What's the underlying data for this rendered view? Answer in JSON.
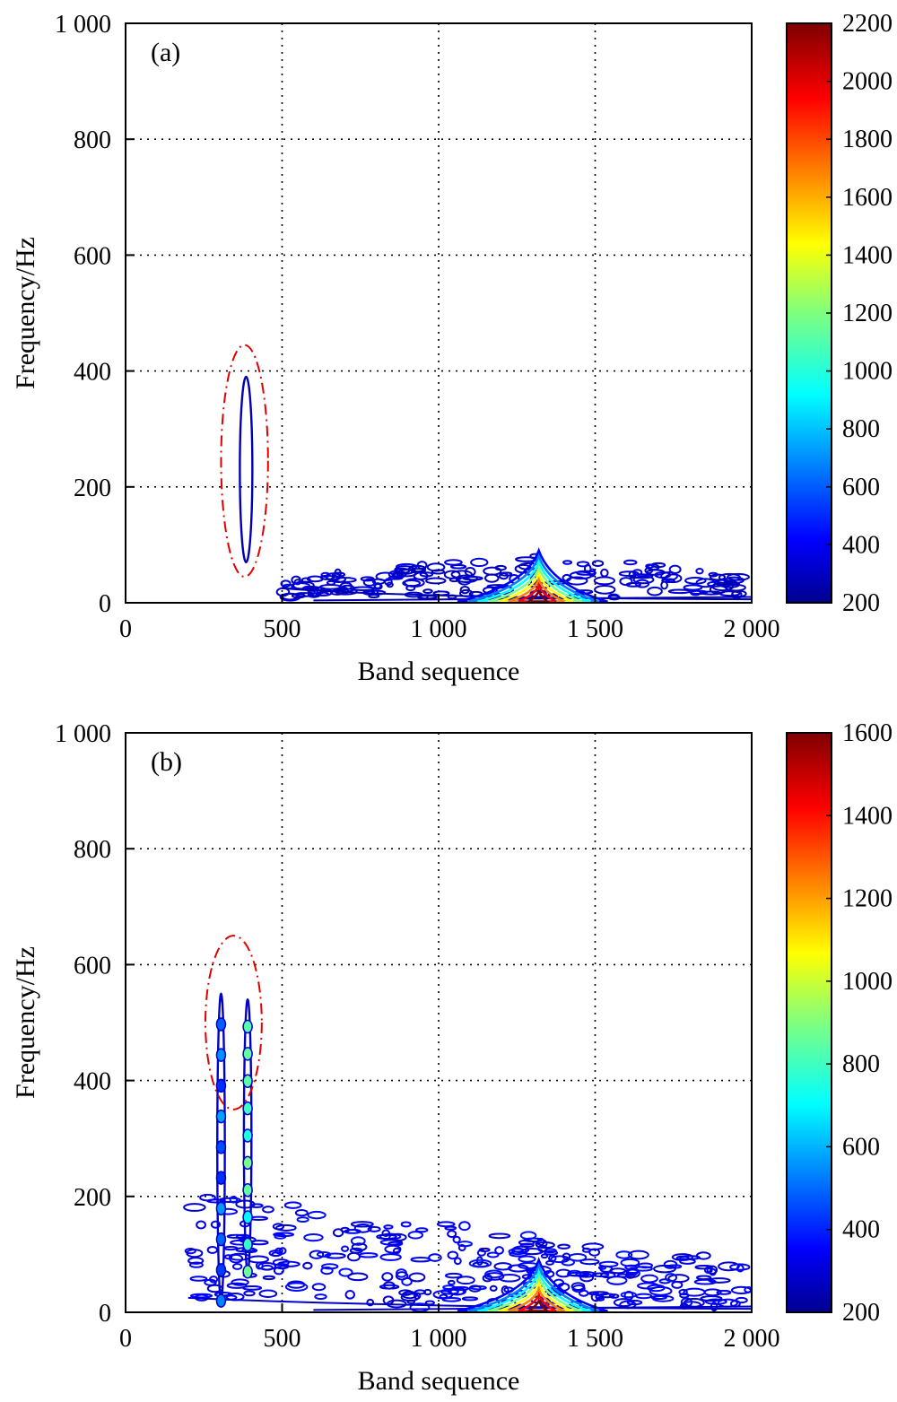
{
  "chart_data": [
    {
      "type": "contour",
      "panel_label": "(a)",
      "xlabel": "Band sequence",
      "ylabel": "Frequency/Hz",
      "xlim": [
        0,
        2000
      ],
      "ylim": [
        0,
        1000
      ],
      "x_ticks": [
        0,
        500,
        1000,
        1500,
        2000
      ],
      "x_tick_labels": [
        "0",
        "500",
        "1 000",
        "1 500",
        "2 000"
      ],
      "y_ticks": [
        0,
        200,
        400,
        600,
        800,
        1000
      ],
      "y_tick_labels": [
        "0",
        "200",
        "400",
        "600",
        "800",
        "1 000"
      ],
      "grid": true,
      "colorbar": {
        "range": [
          200,
          2200
        ],
        "ticks": [
          200,
          400,
          600,
          800,
          1000,
          1200,
          1400,
          1600,
          1800,
          2000,
          2200
        ],
        "tick_labels": [
          "200",
          "400",
          "600",
          "800",
          "1000",
          "1200",
          "1400",
          "1600",
          "1800",
          "2000",
          "2200"
        ]
      },
      "annotation": {
        "shape": "dash-dot ellipse",
        "center": [
          380,
          245
        ],
        "radius_x": 75,
        "radius_y": 200
      },
      "features": [
        {
          "name": "narrow vertical contour",
          "x": [
            365,
            405
          ],
          "y": [
            70,
            390
          ],
          "level": 300
        },
        {
          "name": "main energy peak",
          "x": 1320,
          "y": 10,
          "level": 2200
        },
        {
          "name": "low-frequency band",
          "x": [
            500,
            2000
          ],
          "y": [
            0,
            80
          ],
          "level": 300
        }
      ]
    },
    {
      "type": "contour",
      "panel_label": "(b)",
      "xlabel": "Band sequence",
      "ylabel": "Frequency/Hz",
      "xlim": [
        0,
        2000
      ],
      "ylim": [
        0,
        1000
      ],
      "x_ticks": [
        0,
        500,
        1000,
        1500,
        2000
      ],
      "x_tick_labels": [
        "0",
        "500",
        "1 000",
        "1 500",
        "2 000"
      ],
      "y_ticks": [
        0,
        200,
        400,
        600,
        800,
        1000
      ],
      "y_tick_labels": [
        "0",
        "200",
        "400",
        "600",
        "800",
        "1 000"
      ],
      "grid": true,
      "colorbar": {
        "range": [
          200,
          1600
        ],
        "ticks": [
          200,
          400,
          600,
          800,
          1000,
          1200,
          1400,
          1600
        ],
        "tick_labels": [
          "200",
          "400",
          "600",
          "800",
          "1000",
          "1200",
          "1400",
          "1600"
        ]
      },
      "annotation": {
        "shape": "dash-dot ellipse",
        "center": [
          345,
          500
        ],
        "radius_x": 90,
        "radius_y": 150
      },
      "features": [
        {
          "name": "vertical contour column",
          "x": 305,
          "y": [
            20,
            550
          ],
          "level": 600
        },
        {
          "name": "vertical contour column",
          "x": 390,
          "y": [
            70,
            540
          ],
          "level": 900
        },
        {
          "name": "main energy peak",
          "x": 1320,
          "y": 10,
          "level": 1600
        },
        {
          "name": "low-frequency band",
          "x": [
            200,
            2000
          ],
          "y": [
            0,
            200
          ],
          "level": 300
        }
      ]
    }
  ]
}
